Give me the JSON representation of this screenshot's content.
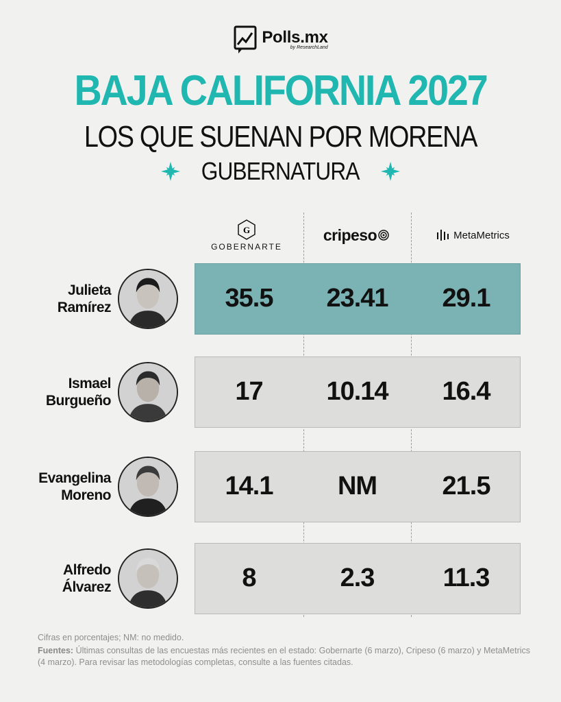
{
  "brand": {
    "name": "Polls.mx",
    "sub": "by ResearchLand"
  },
  "header": {
    "title": "BAJA CALIFORNIA 2027",
    "subtitle": "LOS QUE SUENAN POR MORENA",
    "office": "GUBERNATURA"
  },
  "colors": {
    "accent": "#20b7b1",
    "highlight_row": "#7bb2b3",
    "row": "#dddddc",
    "background": "#f1f1ef"
  },
  "chart_data": {
    "type": "table",
    "title": "BAJA CALIFORNIA 2027 — Los que suenan por Morena — Gubernatura",
    "columns": [
      "GOBERNARTE",
      "cripeso",
      "MetaMetrics"
    ],
    "rows": [
      {
        "first": "Julieta",
        "last": "Ramírez",
        "values": [
          "35.5",
          "23.41",
          "29.1"
        ],
        "highlight": true
      },
      {
        "first": "Ismael",
        "last": "Burgueño",
        "values": [
          "17",
          "10.14",
          "16.4"
        ],
        "highlight": false
      },
      {
        "first": "Evangelina",
        "last": "Moreno",
        "values": [
          "14.1",
          "NM",
          "21.5"
        ],
        "highlight": false
      },
      {
        "first": "Alfredo",
        "last": "Álvarez",
        "values": [
          "8",
          "2.3",
          "11.3"
        ],
        "highlight": false
      }
    ],
    "unit": "%"
  },
  "footer": {
    "note": "Cifras en porcentajes; NM: no medido.",
    "sources_label": "Fuentes:",
    "sources_text": "Últimas consultas de las encuestas más recientes en el estado: Gobernarte (6 marzo), Cripeso (6 marzo) y MetaMetrics (4 marzo). Para revisar las metodologías completas, consulte a las fuentes citadas."
  }
}
